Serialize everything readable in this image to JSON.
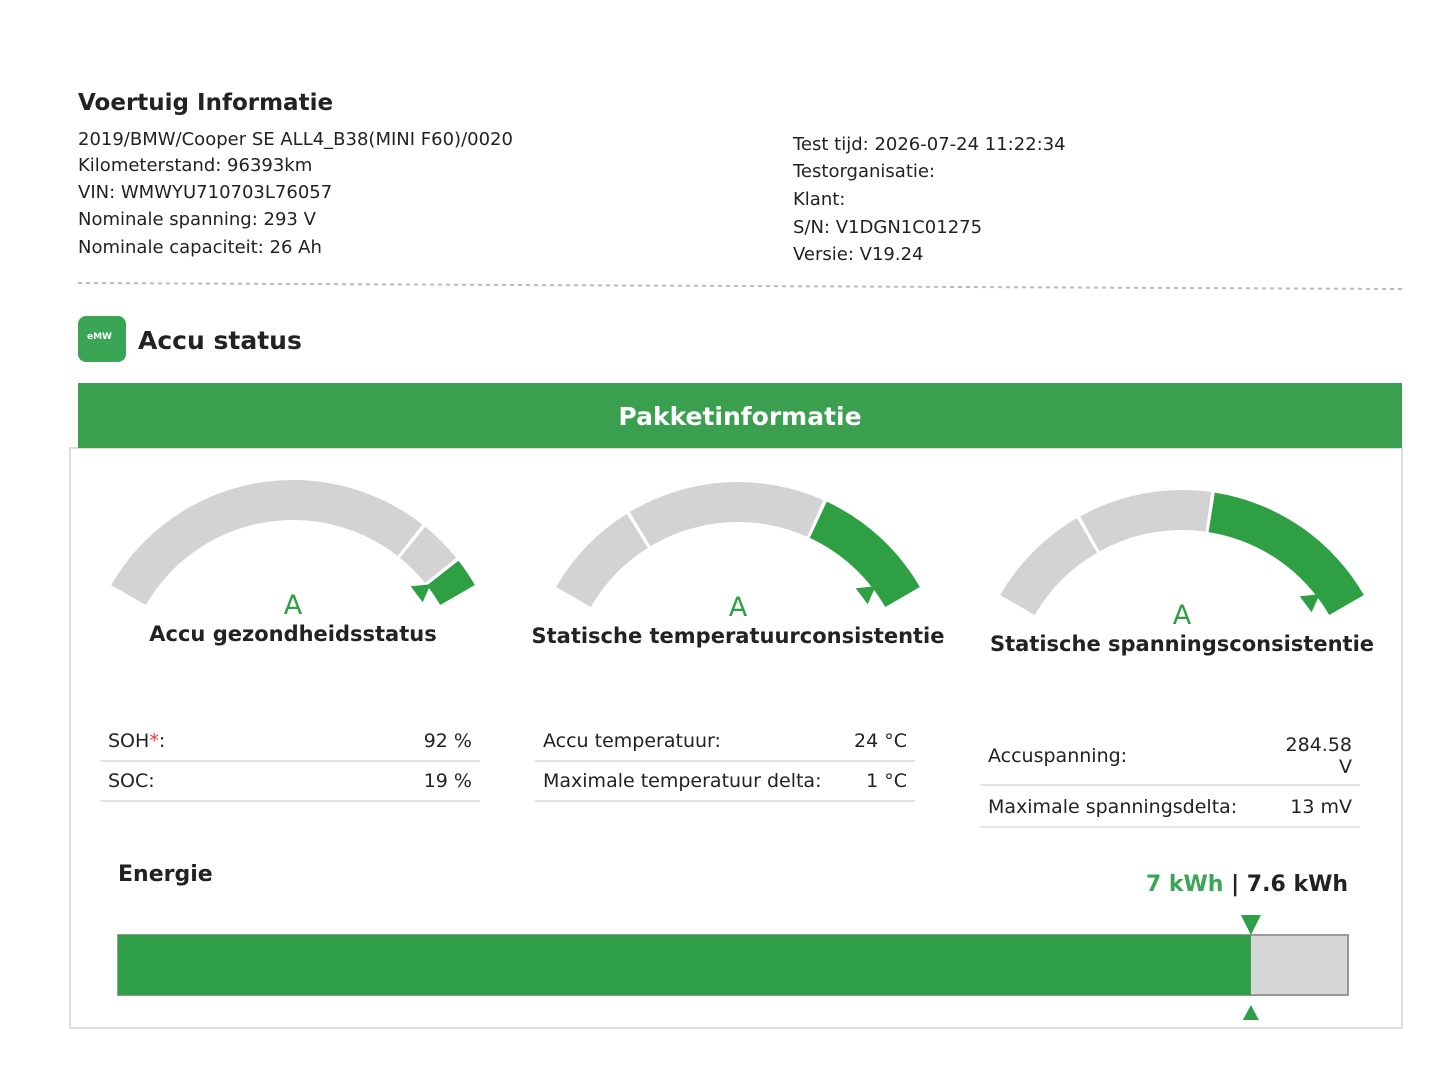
{
  "header": {
    "title": "Voertuig Informatie",
    "left": [
      "2019/BMW/Cooper SE ALL4_B38(MINI F60)/0020",
      "Kilometerstand: 96393km",
      "VIN: WMWYU710703L76057",
      "Nominale spanning: 293 V",
      "Nominale capaciteit: 26 Ah"
    ],
    "right": [
      "Test tijd: 2026-07-24 11:22:34",
      "Testorganisatie:",
      "Klant:",
      "S/N: V1DGN1C01275",
      "Versie: V19.24"
    ]
  },
  "section": {
    "title": "Accu status",
    "icon_text": "eMW"
  },
  "panel": {
    "title": "Pakketinformatie",
    "gauges": [
      {
        "grade": "A",
        "label": "Accu gezondheidsstatus"
      },
      {
        "grade": "A",
        "label": "Statische temperatuurconsistentie"
      },
      {
        "grade": "A",
        "label": "Statische spanningsconsistentie"
      }
    ],
    "tables": [
      [
        {
          "label": "SOH",
          "asterisk": "*",
          "label_end": ":",
          "value": "92 %"
        },
        {
          "label": "SOC:",
          "value": "19 %"
        }
      ],
      [
        {
          "label": "Accu temperatuur:",
          "value": "24 °C"
        },
        {
          "label": "Maximale temperatuur delta:",
          "value": "1 °C"
        }
      ],
      [
        {
          "label": "Accuspanning:",
          "value": "284.58 V"
        },
        {
          "label": "Maximale spanningsdelta:",
          "value": "13 mV"
        }
      ]
    ]
  },
  "energy": {
    "title": "Energie",
    "current": 7,
    "capacity": 7.6,
    "unit": "kWh",
    "separator": "|"
  }
}
